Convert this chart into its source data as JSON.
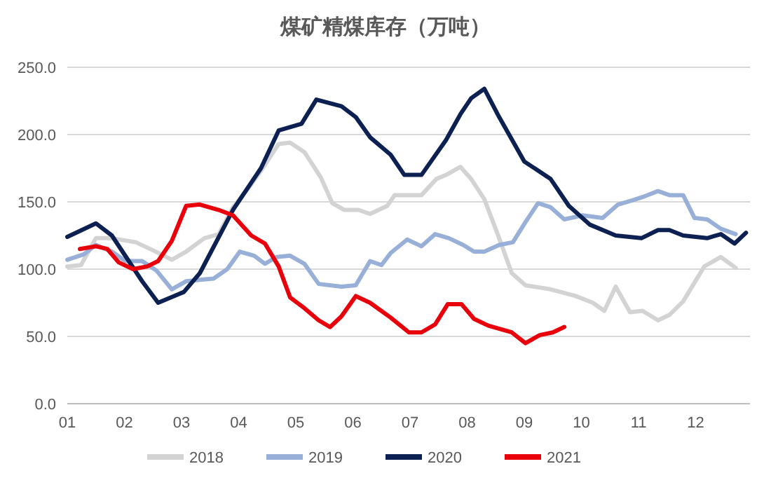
{
  "chart_data": {
    "type": "line",
    "title": "煤矿精煤库存（万吨）",
    "xlim": [
      1,
      12.95
    ],
    "xticks": [
      {
        "value": 1,
        "label": "01"
      },
      {
        "value": 2,
        "label": "02"
      },
      {
        "value": 3,
        "label": "03"
      },
      {
        "value": 4,
        "label": "04"
      },
      {
        "value": 5,
        "label": "05"
      },
      {
        "value": 6,
        "label": "06"
      },
      {
        "value": 7,
        "label": "07"
      },
      {
        "value": 8,
        "label": "08"
      },
      {
        "value": 9,
        "label": "09"
      },
      {
        "value": 10,
        "label": "10"
      },
      {
        "value": 11,
        "label": "11"
      },
      {
        "value": 12,
        "label": "12"
      }
    ],
    "ylim": [
      0,
      250
    ],
    "yticks": [
      {
        "value": 0,
        "label": "0.0"
      },
      {
        "value": 50,
        "label": "50.0"
      },
      {
        "value": 100,
        "label": "100.0"
      },
      {
        "value": 150,
        "label": "150.0"
      },
      {
        "value": 200,
        "label": "200.0"
      },
      {
        "value": 250,
        "label": "250.0"
      }
    ],
    "grid": "y",
    "legend": "bottom",
    "marker": "none",
    "line_style": "solid",
    "series": [
      {
        "name": "2018",
        "color": "#d3d3d3",
        "x": [
          1,
          1.24,
          1.5,
          1.78,
          2.2,
          2.5,
          2.83,
          3.08,
          3.4,
          3.65,
          3.9,
          4.15,
          4.39,
          4.7,
          4.9,
          5.15,
          5.44,
          5.64,
          5.85,
          6.1,
          6.3,
          6.6,
          6.73,
          7.2,
          7.46,
          7.63,
          7.88,
          8.07,
          8.3,
          8.56,
          8.78,
          9.02,
          9.46,
          9.9,
          10.2,
          10.4,
          10.6,
          10.85,
          11.07,
          11.34,
          11.54,
          11.78,
          12.15,
          12.44,
          12.7
        ],
        "values": [
          102,
          103,
          123,
          123,
          120,
          114,
          107,
          113,
          123,
          126,
          146,
          159,
          173,
          193,
          194,
          187,
          168,
          149,
          144,
          144,
          141,
          147,
          155,
          155,
          167,
          170,
          176,
          167,
          152,
          123,
          97,
          88,
          85,
          80,
          75,
          69,
          87,
          68,
          69,
          62,
          66,
          76,
          102,
          109,
          101
        ]
      },
      {
        "name": "2019",
        "color": "#98b0d8",
        "x": [
          1,
          1.29,
          1.5,
          1.78,
          2.02,
          2.31,
          2.56,
          2.83,
          3.08,
          3.32,
          3.56,
          3.8,
          4.02,
          4.27,
          4.46,
          4.66,
          4.9,
          5.15,
          5.4,
          5.8,
          6.05,
          6.3,
          6.5,
          6.66,
          6.95,
          7.2,
          7.44,
          7.68,
          7.93,
          8.12,
          8.3,
          8.56,
          8.8,
          9.02,
          9.24,
          9.46,
          9.7,
          10.02,
          10.37,
          10.64,
          10.88,
          11.1,
          11.34,
          11.54,
          11.78,
          11.98,
          12.2,
          12.44,
          12.7
        ],
        "values": [
          107,
          111,
          118,
          113,
          106,
          106,
          99,
          85,
          91,
          92,
          93,
          100,
          113,
          110,
          104,
          109,
          110,
          104,
          89,
          87,
          88,
          106,
          103,
          112,
          122,
          117,
          126,
          123,
          118,
          113,
          113,
          118,
          120,
          135,
          149,
          146,
          137,
          140,
          138,
          148,
          151,
          154,
          158,
          155,
          155,
          138,
          137,
          130,
          126
        ]
      },
      {
        "name": "2020",
        "color": "#0c2152",
        "x": [
          1,
          1.5,
          1.78,
          2.31,
          2.59,
          3.04,
          3.32,
          3.9,
          4.39,
          4.7,
          5.1,
          5.36,
          5.8,
          6.05,
          6.3,
          6.66,
          6.9,
          7.2,
          7.63,
          7.88,
          8.07,
          8.3,
          8.56,
          9.0,
          9.46,
          9.78,
          10.15,
          10.6,
          11.05,
          11.34,
          11.54,
          11.78,
          12.2,
          12.44,
          12.68,
          12.88
        ],
        "values": [
          124,
          134,
          125,
          91,
          75,
          83,
          97,
          144,
          175,
          203,
          208,
          226,
          221,
          213,
          198,
          185,
          170,
          170,
          196,
          215,
          227,
          234,
          213,
          180,
          167,
          147,
          133,
          125,
          123,
          129,
          129,
          125,
          123,
          126,
          119,
          127
        ]
      },
      {
        "name": "2021",
        "color": "#e8000b",
        "x": [
          1.22,
          1.5,
          1.7,
          1.9,
          2.15,
          2.4,
          2.59,
          2.83,
          3.08,
          3.32,
          3.65,
          3.9,
          4.22,
          4.46,
          4.7,
          4.9,
          5.15,
          5.4,
          5.6,
          5.8,
          6.05,
          6.3,
          6.66,
          6.98,
          7.2,
          7.44,
          7.66,
          7.9,
          8.12,
          8.37,
          8.78,
          9.02,
          9.27,
          9.5,
          9.7
        ],
        "values": [
          115,
          117,
          115,
          105,
          100,
          102,
          106,
          121,
          147,
          148,
          144,
          140,
          125,
          119,
          102,
          79,
          71,
          62,
          57,
          65,
          80,
          75,
          64,
          53,
          53,
          59,
          74,
          74,
          63,
          58,
          53,
          45,
          51,
          53,
          57
        ]
      }
    ]
  }
}
